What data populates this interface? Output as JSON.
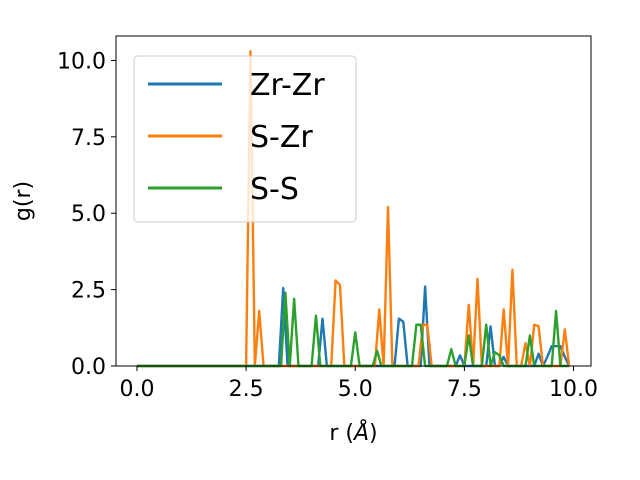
{
  "chart_data": {
    "type": "line",
    "xlabel": "r",
    "xlabel_unit": "Å",
    "ylabel": "g(r)",
    "xlim": [
      -0.48,
      10.4
    ],
    "ylim": [
      0,
      10.8
    ],
    "xticks": [
      0.0,
      2.5,
      5.0,
      7.5,
      10.0
    ],
    "xtick_labels": [
      "0.0",
      "2.5",
      "5.0",
      "7.5",
      "10.0"
    ],
    "yticks": [
      0.0,
      2.5,
      5.0,
      7.5,
      10.0
    ],
    "ytick_labels": [
      "0.0",
      "2.5",
      "5.0",
      "7.5",
      "10.0"
    ],
    "grid": false,
    "legend_position": "top-left",
    "series": [
      {
        "name": "Zr-Zr",
        "color": "#1f77b4",
        "x": [
          0.0,
          3.25,
          3.35,
          3.45,
          4.15,
          4.25,
          4.35,
          5.8,
          5.9,
          6.0,
          6.1,
          6.2,
          6.5,
          6.6,
          6.7,
          7.3,
          7.4,
          7.5,
          7.6,
          8.0,
          8.1,
          8.2,
          8.3,
          8.4,
          8.5,
          8.6,
          8.7,
          9.1,
          9.2,
          9.3,
          9.4,
          9.5,
          9.6,
          9.7,
          9.8,
          9.9
        ],
        "y": [
          0,
          0,
          2.55,
          0,
          0,
          1.55,
          0,
          0,
          0,
          1.55,
          1.45,
          0,
          0,
          2.6,
          0,
          0,
          0.35,
          0,
          0,
          0,
          1.3,
          0,
          0,
          0.3,
          0,
          0,
          0,
          0,
          0.4,
          0,
          0.3,
          0.65,
          0.65,
          0.65,
          0.3,
          0
        ]
      },
      {
        "name": "S-Zr",
        "color": "#ff7f0e",
        "x": [
          0.0,
          2.5,
          2.6,
          2.7,
          2.8,
          2.9,
          4.45,
          4.55,
          4.65,
          4.75,
          5.45,
          5.55,
          5.65,
          5.75,
          5.85,
          6.45,
          6.55,
          6.65,
          6.75,
          7.5,
          7.6,
          7.7,
          7.8,
          7.9,
          8.3,
          8.4,
          8.5,
          8.6,
          8.7,
          8.8,
          8.9,
          9.0,
          9.1,
          9.2,
          9.3,
          9.4,
          9.7,
          9.8,
          9.9
        ],
        "y": [
          0,
          0,
          10.3,
          0,
          1.8,
          0,
          0,
          2.8,
          2.65,
          0,
          0,
          1.85,
          0,
          5.2,
          0,
          0,
          1.35,
          1.35,
          0,
          0,
          2.0,
          0,
          2.85,
          0,
          0,
          1.85,
          0,
          3.15,
          0,
          0,
          0.75,
          0,
          1.35,
          1.3,
          0,
          0,
          0,
          1.2,
          0
        ]
      },
      {
        "name": "S-S",
        "color": "#2ca02c",
        "x": [
          0.0,
          3.3,
          3.4,
          3.5,
          3.6,
          3.7,
          4.0,
          4.1,
          4.2,
          4.9,
          5.0,
          5.1,
          5.4,
          5.5,
          5.6,
          6.3,
          6.4,
          6.5,
          6.6,
          7.1,
          7.2,
          7.3,
          7.5,
          7.6,
          7.7,
          7.9,
          8.0,
          8.1,
          8.2,
          8.3,
          8.4,
          8.5,
          8.9,
          9.0,
          9.1,
          9.2,
          9.5,
          9.6,
          9.7,
          9.8,
          9.9
        ],
        "y": [
          0,
          0,
          2.4,
          0,
          2.2,
          0,
          0,
          1.65,
          0,
          0,
          1.1,
          0,
          0,
          0.5,
          0,
          0,
          1.35,
          1.35,
          0,
          0,
          0.55,
          0,
          0,
          1.0,
          0,
          0,
          1.35,
          0,
          0.45,
          0.35,
          0,
          0,
          0,
          1.0,
          0,
          0,
          0,
          1.8,
          0,
          0,
          0
        ]
      }
    ]
  }
}
